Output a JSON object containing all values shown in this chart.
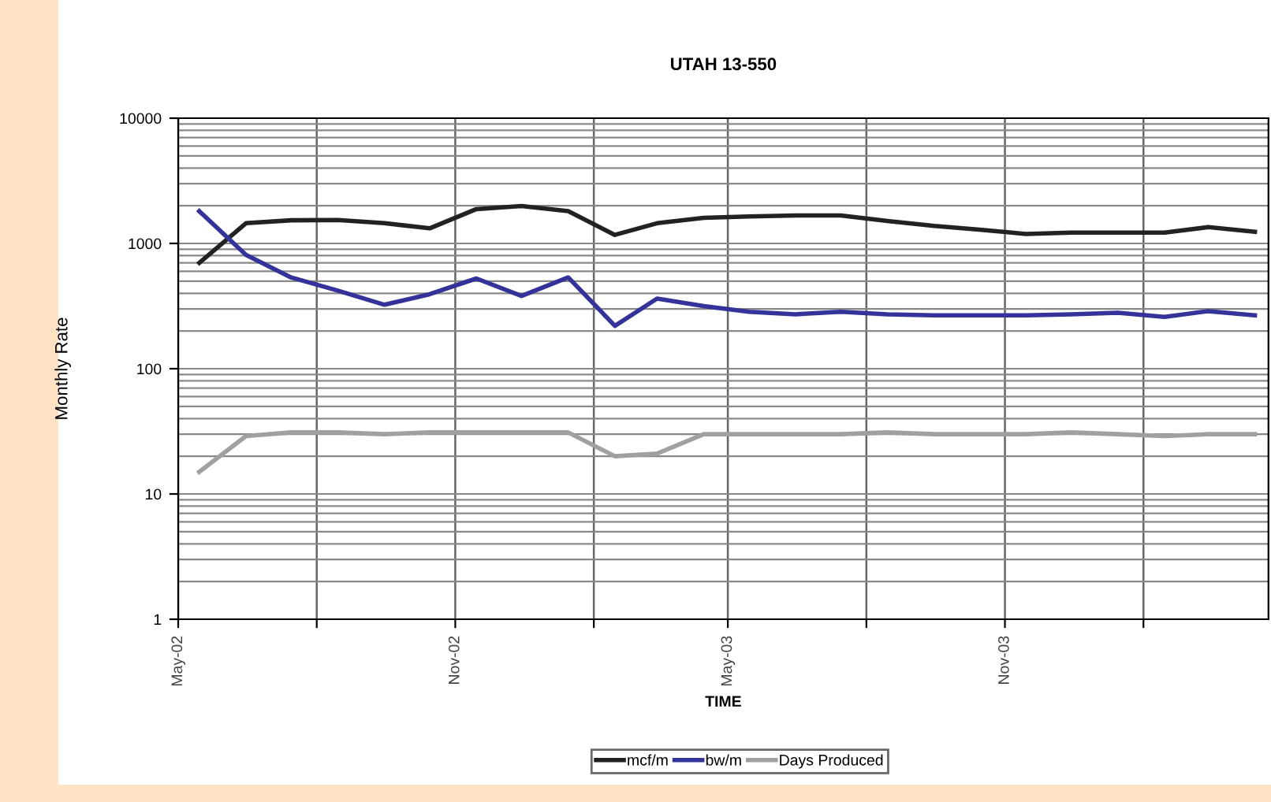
{
  "chart_data": {
    "type": "line",
    "title": "UTAH 13-550",
    "xlabel": "TIME",
    "ylabel": "Monthly Rate",
    "x": [
      "2002-05-15",
      "2002-06-15",
      "2002-07-15",
      "2002-08-15",
      "2002-09-15",
      "2002-10-15",
      "2002-11-15",
      "2002-12-15",
      "2003-01-15",
      "2003-02-15",
      "2003-03-15",
      "2003-04-15",
      "2003-05-15",
      "2003-06-15",
      "2003-07-15",
      "2003-08-15",
      "2003-09-15",
      "2003-10-15",
      "2003-11-15",
      "2003-12-15",
      "2004-01-15",
      "2004-02-15",
      "2004-03-15",
      "2004-04-15"
    ],
    "series": [
      {
        "name": "mcf/m",
        "color": "#222222",
        "values": [
          700,
          1450,
          1530,
          1540,
          1450,
          1320,
          1880,
          1990,
          1810,
          1170,
          1450,
          1600,
          1640,
          1670,
          1670,
          1510,
          1380,
          1290,
          1190,
          1220,
          1220,
          1220,
          1350,
          1240
        ]
      },
      {
        "name": "bw/m",
        "color": "#33339a",
        "values": [
          1810,
          810,
          535,
          420,
          324,
          393,
          525,
          381,
          535,
          220,
          363,
          316,
          285,
          272,
          285,
          272,
          267,
          267,
          267,
          272,
          280,
          259,
          288,
          267
        ]
      },
      {
        "name": "Days Produced",
        "color": "#a0a0a0",
        "values": [
          15,
          29,
          31,
          31,
          30,
          31,
          31,
          31,
          31,
          20,
          21,
          30,
          30,
          30,
          30,
          31,
          30,
          30,
          30,
          31,
          30,
          29,
          30,
          30
        ]
      }
    ],
    "log": "y",
    "ylim": [
      1,
      10000
    ],
    "yticks": [
      1,
      10,
      100,
      1000,
      10000
    ],
    "xlim": [
      "2002-05-01",
      "2004-04-24"
    ],
    "xticks": [
      {
        "value": "2002-05-01",
        "label": "May-02"
      },
      {
        "value": "2002-08-01",
        "label": null
      },
      {
        "value": "2002-11-01",
        "label": "Nov-02"
      },
      {
        "value": "2003-02-01",
        "label": null
      },
      {
        "value": "2003-05-01",
        "label": "May-03"
      },
      {
        "value": "2003-08-01",
        "label": null
      },
      {
        "value": "2003-11-01",
        "label": "Nov-03"
      },
      {
        "value": "2004-02-01",
        "label": null
      }
    ],
    "grid": true,
    "legend": "bottom",
    "marker": "none",
    "line_style": "solid"
  }
}
